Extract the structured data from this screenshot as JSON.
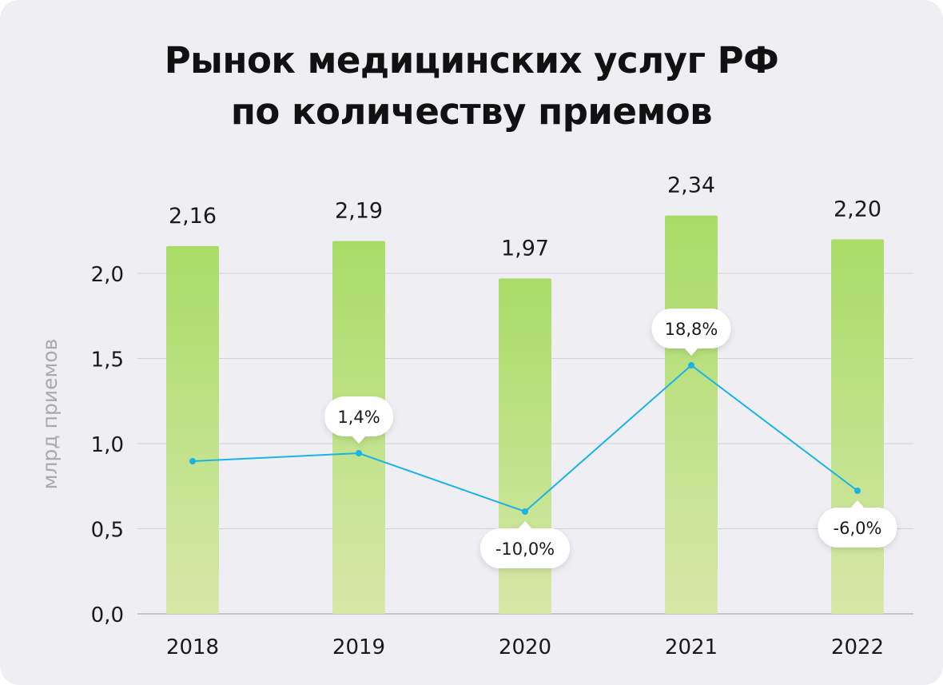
{
  "title": {
    "line1": "Рынок медицинских услуг РФ",
    "line2": "по количеству приемов"
  },
  "colors": {
    "background": "#efeff3",
    "bar_top": "#a9dc67",
    "bar_bottom": "#d6e8a8",
    "line": "#1ab3e6",
    "grid": "#d2d2d8"
  },
  "chart_data": {
    "type": "bar",
    "categories": [
      "2018",
      "2019",
      "2020",
      "2021",
      "2022"
    ],
    "values": [
      2.16,
      2.19,
      1.97,
      2.34,
      2.2
    ],
    "value_labels": [
      "2,16",
      "2,19",
      "1,97",
      "2,34",
      "2,20"
    ],
    "ylabel": "млрд приемов",
    "ylim": [
      0,
      2.0
    ],
    "yticks": [
      0.0,
      0.5,
      1.0,
      1.5,
      2.0
    ],
    "ytick_labels": [
      "0,0",
      "0,5",
      "1,0",
      "1,5",
      "2,0"
    ],
    "grid": true,
    "growth": {
      "type": "line",
      "labels": [
        "1,4%",
        "-10,0%",
        "18,8%",
        "-6,0%"
      ],
      "growth_percent": [
        null,
        1.4,
        -10.0,
        18.8,
        -6.0
      ],
      "label_position": [
        "none",
        "above",
        "below",
        "above",
        "below"
      ]
    }
  }
}
